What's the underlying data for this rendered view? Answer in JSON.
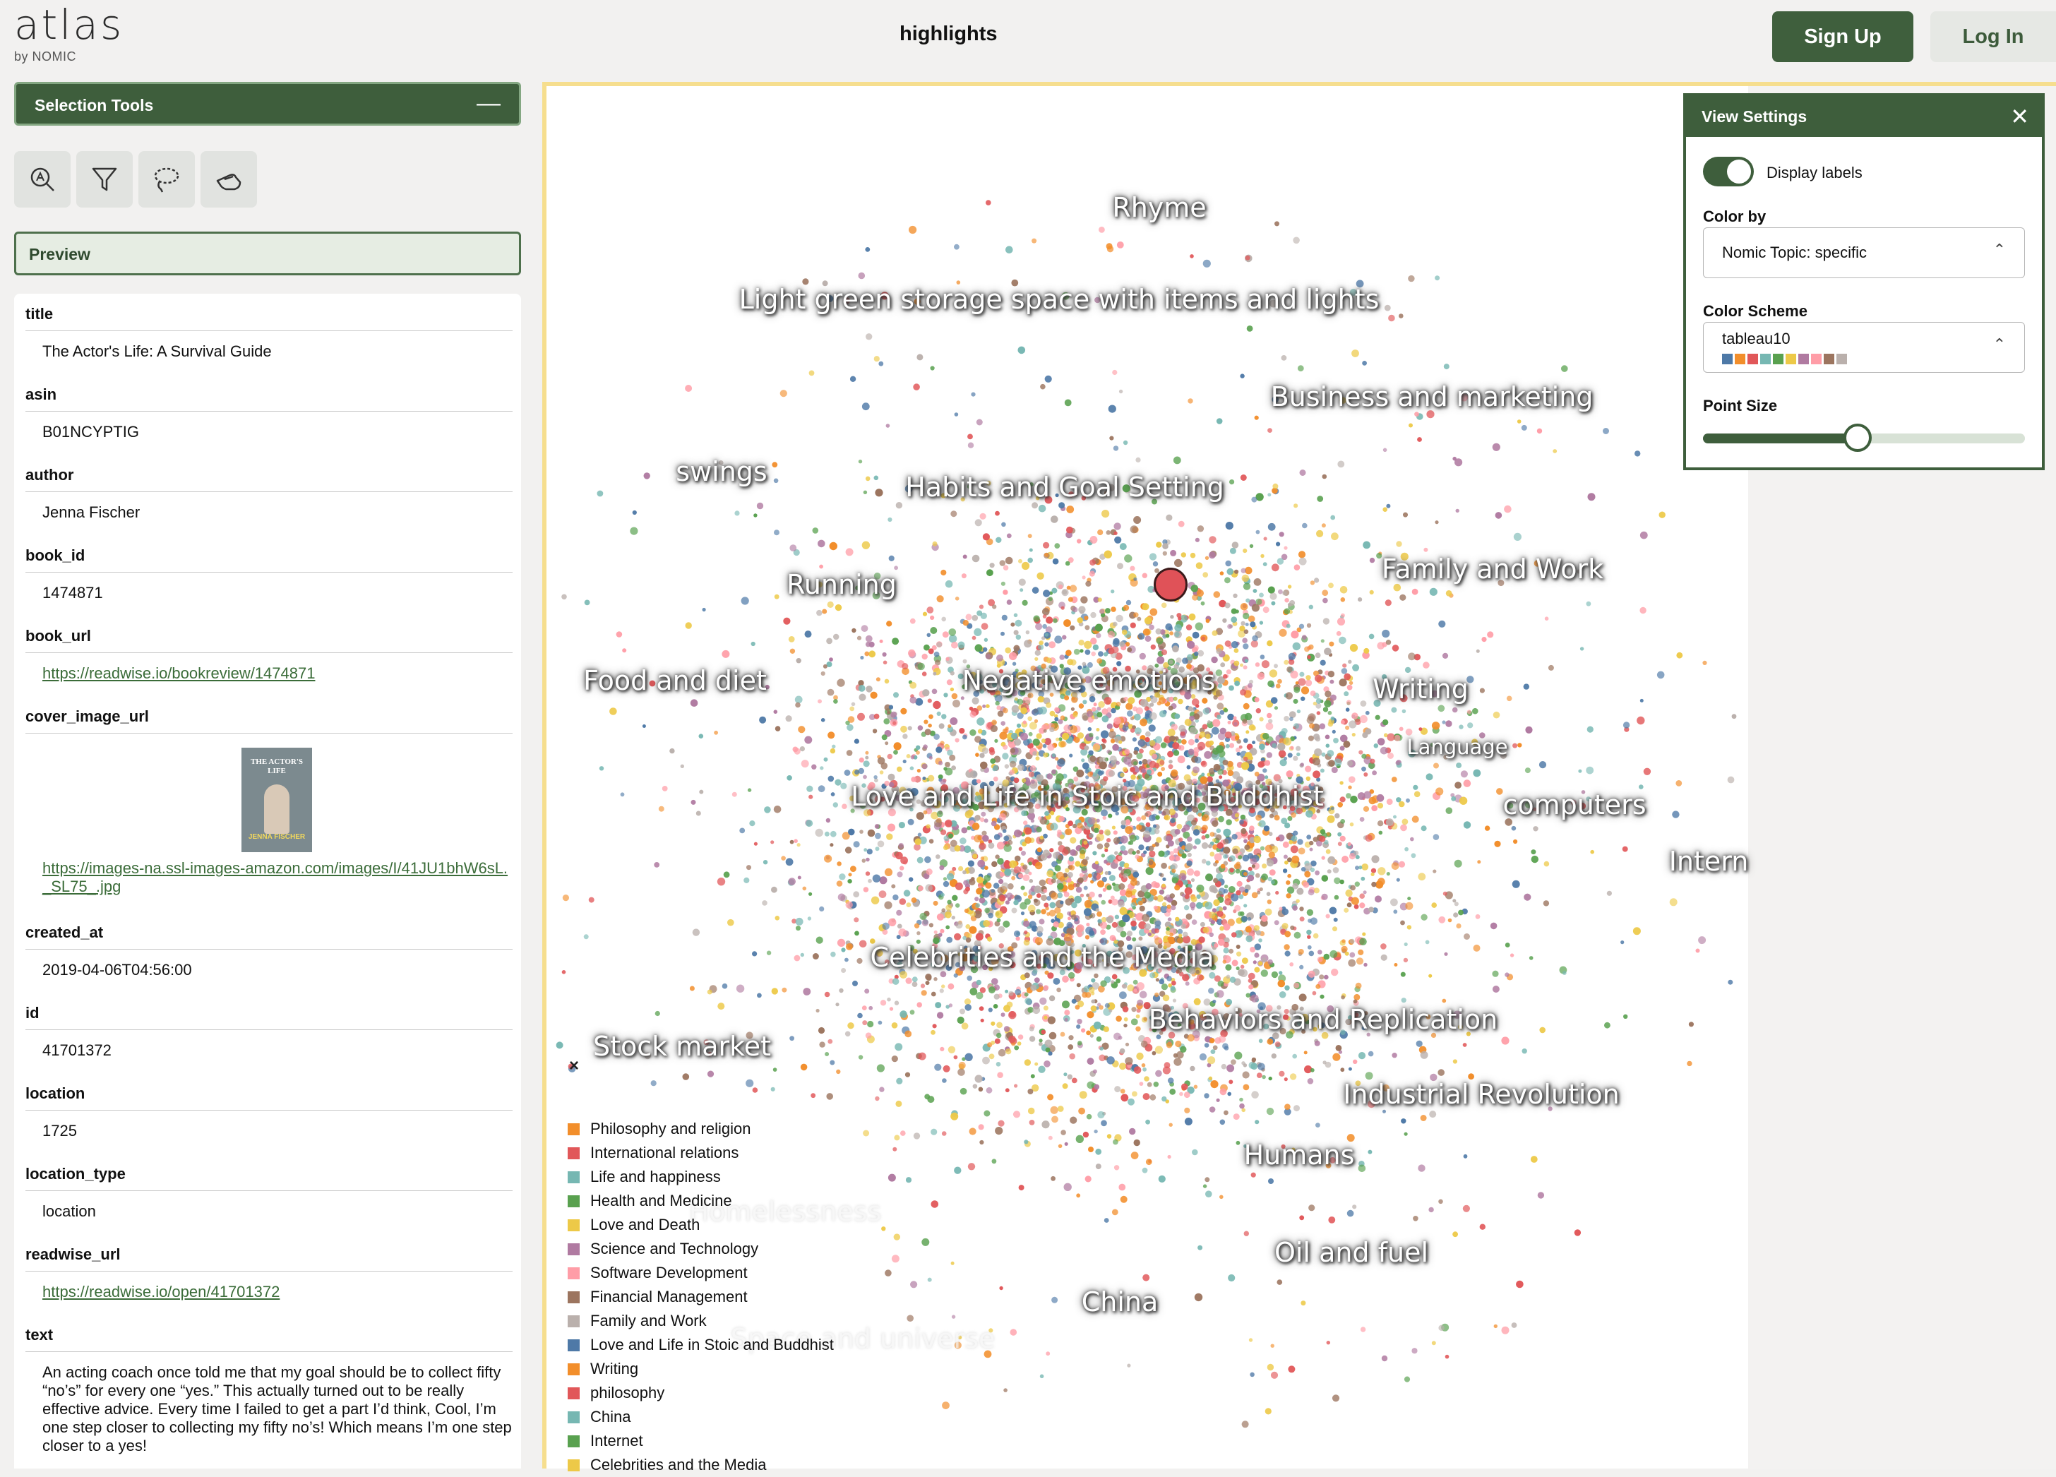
{
  "header": {
    "logo_word": "atlas",
    "logo_sub": "by NOMIC",
    "title": "highlights",
    "signup_label": "Sign Up",
    "login_label": "Log In"
  },
  "selection_tools": {
    "title": "Selection Tools",
    "minimize_icon": "minus-icon",
    "tools": [
      "zoom-search-icon",
      "filter-icon",
      "lasso-icon",
      "hand-pointer-icon"
    ]
  },
  "preview": {
    "title": "Preview",
    "fields": [
      {
        "label": "title",
        "value": "The Actor's Life: A Survival Guide"
      },
      {
        "label": "asin",
        "value": "B01NCYPTIG"
      },
      {
        "label": "author",
        "value": "Jenna Fischer"
      },
      {
        "label": "book_id",
        "value": "1474871"
      },
      {
        "label": "book_url",
        "value": "https://readwise.io/bookreview/1474871"
      },
      {
        "label": "cover_image_url",
        "value": "https://images-na.ssl-images-amazon.com/images/I/41JU1bhW6sL._SL75_.jpg"
      },
      {
        "label": "created_at",
        "value": "2019-04-06T04:56:00"
      },
      {
        "label": "id",
        "value": "41701372"
      },
      {
        "label": "location",
        "value": "1725"
      },
      {
        "label": "location_type",
        "value": "location"
      },
      {
        "label": "readwise_url",
        "value": "https://readwise.io/open/41701372"
      },
      {
        "label": "text",
        "value": "An acting coach once told me that my goal should be to collect fifty “no’s” for every one “yes.” This actually turned out to be really effective advice. Every time I failed to get a part I’d think, Cool, I’m one step closer to collecting my fifty no’s! Which means I’m one step closer to a yes!"
      }
    ],
    "cover": {
      "title": "THE ACTOR'S LIFE",
      "author": "JENNA FISCHER"
    }
  },
  "map": {
    "topic_labels": [
      "Rhyme",
      "Light green storage space with items and lights",
      "Business and marketing",
      "swings",
      "Habits and Goal Setting",
      "Running",
      "Family and Work",
      "Food and diet",
      "Negative emotions",
      "Writing",
      "Language",
      "Love and Life in Stoic and Buddhist",
      "computers",
      "Intern",
      "Celebrities and the Media",
      "Behaviors and Replication",
      "Stock market",
      "Industrial Revolution",
      "Humans",
      "Homelessness",
      "Oil and fuel",
      "China",
      "Space and universe"
    ],
    "legend_close": "×",
    "legend": [
      {
        "label": "Philosophy and religion",
        "color": "#f28e2b"
      },
      {
        "label": "International relations",
        "color": "#e15759"
      },
      {
        "label": "Life and happiness",
        "color": "#76b7b2"
      },
      {
        "label": "Health and Medicine",
        "color": "#59a14f"
      },
      {
        "label": "Love and Death",
        "color": "#edc948"
      },
      {
        "label": "Science and Technology",
        "color": "#b07aa1"
      },
      {
        "label": "Software Development",
        "color": "#ff9da7"
      },
      {
        "label": "Financial Management",
        "color": "#9c755f"
      },
      {
        "label": "Family and Work",
        "color": "#bab0ac"
      },
      {
        "label": "Love and Life in Stoic and Buddhist",
        "color": "#4e79a7"
      },
      {
        "label": "Writing",
        "color": "#f28e2b"
      },
      {
        "label": "philosophy",
        "color": "#e15759"
      },
      {
        "label": "China",
        "color": "#76b7b2"
      },
      {
        "label": "Internet",
        "color": "#59a14f"
      },
      {
        "label": "Celebrities and the Media",
        "color": "#edc948"
      }
    ]
  },
  "view_settings": {
    "title": "View Settings",
    "close_icon": "close-icon",
    "display_labels": "Display labels",
    "display_labels_on": true,
    "color_by_label": "Color by",
    "color_by_value": "Nomic Topic: specific",
    "color_scheme_label": "Color Scheme",
    "color_scheme_value": "tableau10",
    "scheme_colors": [
      "#4e79a7",
      "#f28e2b",
      "#e15759",
      "#76b7b2",
      "#59a14f",
      "#edc948",
      "#b07aa1",
      "#ff9da7",
      "#9c755f",
      "#bab0ac"
    ],
    "point_size_label": "Point Size",
    "point_size_fraction": 0.48
  }
}
